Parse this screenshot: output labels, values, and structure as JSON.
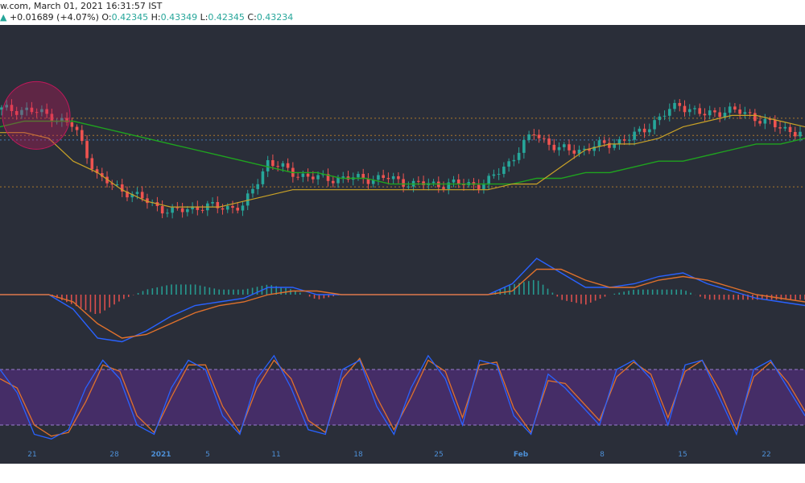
{
  "header": {
    "line1": "w.com, March 01, 2021 16:31:57 IST",
    "change": "+0.01689 (+4.07%)",
    "ohlc": [
      {
        "label": "O:",
        "value": "0.42345"
      },
      {
        "label": "H:",
        "value": "0.43349"
      },
      {
        "label": "L:",
        "value": "0.42345"
      },
      {
        "label": "C:",
        "value": "0.43234"
      }
    ]
  },
  "colors": {
    "background": "#2a2e39",
    "up": "#26a69a",
    "down": "#ef5350",
    "ma_fast": "#c9a227",
    "ma_slow": "#1fa31f",
    "macd_line": "#2962ff",
    "signal_line": "#e0712c",
    "stoch_band": "#5b2d8e",
    "highlight_circle": "#c2185b"
  },
  "chart_data": [
    {
      "type": "candlestick",
      "title": "",
      "x_ticks": [
        "21",
        "28",
        "2021",
        "5",
        "11",
        "18",
        "25",
        "Feb",
        "8",
        "15",
        "22"
      ],
      "y_range": [
        0.18,
        0.56
      ],
      "horizontal_levels": [
        0.425,
        0.395,
        0.387,
        0.305
      ],
      "series": [
        {
          "kind": "moving_average_fast",
          "values": [
            0.4,
            0.4,
            0.39,
            0.35,
            0.33,
            0.3,
            0.28,
            0.27,
            0.27,
            0.27,
            0.28,
            0.29,
            0.3,
            0.3,
            0.3,
            0.3,
            0.3,
            0.3,
            0.3,
            0.3,
            0.3,
            0.31,
            0.31,
            0.34,
            0.37,
            0.38,
            0.38,
            0.39,
            0.41,
            0.42,
            0.43,
            0.43,
            0.42,
            0.41
          ]
        },
        {
          "kind": "moving_average_slow",
          "values": [
            0.41,
            0.42,
            0.42,
            0.42,
            0.41,
            0.4,
            0.39,
            0.38,
            0.37,
            0.36,
            0.35,
            0.34,
            0.33,
            0.33,
            0.32,
            0.32,
            0.31,
            0.31,
            0.31,
            0.31,
            0.31,
            0.31,
            0.32,
            0.32,
            0.33,
            0.33,
            0.34,
            0.35,
            0.35,
            0.36,
            0.37,
            0.38,
            0.38,
            0.39
          ]
        },
        {
          "kind": "close",
          "values": [
            0.44,
            0.44,
            0.43,
            0.41,
            0.32,
            0.3,
            0.28,
            0.26,
            0.27,
            0.27,
            0.27,
            0.35,
            0.33,
            0.32,
            0.32,
            0.32,
            0.32,
            0.31,
            0.31,
            0.31,
            0.31,
            0.35,
            0.4,
            0.37,
            0.37,
            0.38,
            0.39,
            0.42,
            0.45,
            0.43,
            0.44,
            0.43,
            0.41,
            0.4
          ]
        }
      ]
    },
    {
      "type": "macd",
      "series": [
        {
          "name": "",
          "values": [
            0.0,
            0.0,
            0.0,
            -0.004,
            -0.012,
            -0.013,
            -0.01,
            -0.006,
            -0.003,
            -0.002,
            -0.001,
            0.002,
            0.002,
            0.0,
            0.0,
            0.0,
            0.0,
            0.0,
            0.0,
            0.0,
            0.0,
            0.003,
            0.01,
            0.006,
            0.002,
            0.002,
            0.003,
            0.005,
            0.006,
            0.003,
            0.001,
            -0.001,
            -0.002,
            -0.003
          ]
        },
        {
          "name": "",
          "values": [
            0.0,
            0.0,
            0.0,
            -0.002,
            -0.008,
            -0.012,
            -0.011,
            -0.008,
            -0.005,
            -0.003,
            -0.002,
            0.0,
            0.001,
            0.001,
            0.0,
            0.0,
            0.0,
            0.0,
            0.0,
            0.0,
            0.0,
            0.001,
            0.007,
            0.007,
            0.004,
            0.002,
            0.002,
            0.004,
            0.005,
            0.004,
            0.002,
            0.0,
            -0.001,
            -0.002
          ]
        }
      ]
    },
    {
      "type": "stochastic_rsi",
      "y_range": [
        0,
        100
      ],
      "band": [
        20,
        80
      ],
      "series": [
        {
          "name": "",
          "values": [
            80,
            55,
            10,
            5,
            15,
            60,
            90,
            70,
            20,
            10,
            60,
            90,
            80,
            30,
            10,
            70,
            95,
            60,
            15,
            10,
            80,
            90,
            40,
            10,
            60,
            95,
            70,
            20,
            90,
            85,
            30,
            10,
            75,
            60,
            40,
            20,
            80,
            90,
            70,
            20,
            85,
            90,
            50,
            10,
            80,
            90,
            60,
            30
          ]
        },
        {
          "name": "",
          "values": [
            70,
            60,
            20,
            8,
            12,
            45,
            85,
            78,
            30,
            12,
            50,
            85,
            85,
            40,
            12,
            60,
            90,
            70,
            25,
            12,
            70,
            92,
            50,
            15,
            50,
            90,
            78,
            28,
            85,
            88,
            38,
            12,
            68,
            65,
            45,
            25,
            72,
            88,
            75,
            28,
            78,
            90,
            58,
            15,
            72,
            88,
            66,
            35
          ]
        }
      ]
    }
  ]
}
